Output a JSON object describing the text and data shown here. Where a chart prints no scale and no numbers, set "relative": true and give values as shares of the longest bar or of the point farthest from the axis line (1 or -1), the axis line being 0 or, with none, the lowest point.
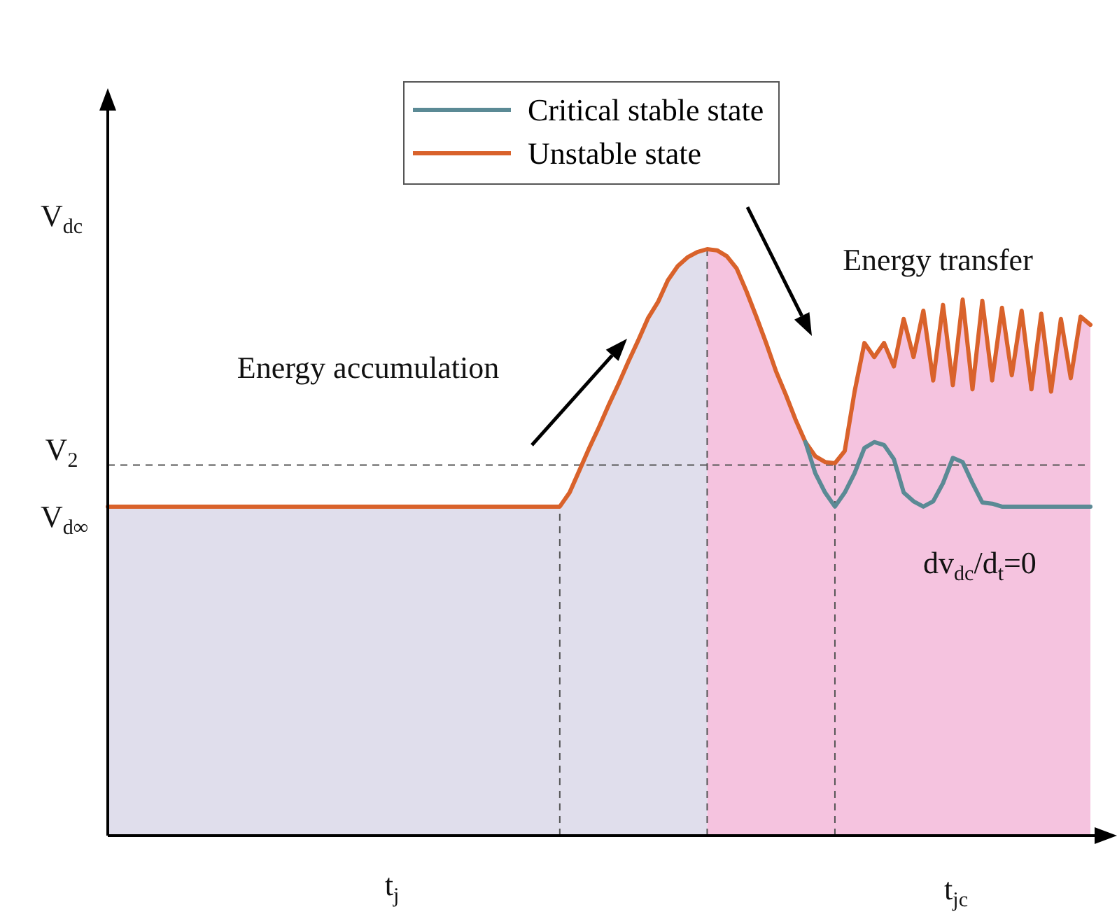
{
  "chart_data": {
    "type": "line",
    "relative": true,
    "ylabel": "V$_{dc}$",
    "legend": "top",
    "categories": [
      null,
      null,
      null,
      null,
      null,
      null,
      null,
      null,
      null,
      null,
      null,
      null,
      null,
      null,
      null,
      null,
      null,
      null,
      null,
      null,
      null,
      null,
      null,
      null,
      null,
      null,
      null,
      null,
      null,
      null,
      null,
      null,
      null,
      null,
      null,
      null,
      null,
      null,
      null,
      null,
      null,
      null,
      null,
      null,
      null,
      null,
      null,
      null,
      null,
      null,
      null,
      null,
      null,
      null,
      null,
      null,
      null,
      null,
      null,
      null,
      null,
      null,
      null,
      null,
      null,
      null,
      null,
      null,
      null,
      null,
      null,
      null,
      null,
      null,
      null,
      null,
      null,
      null,
      null,
      null,
      null,
      null,
      null,
      null,
      null,
      null,
      null,
      null,
      null,
      null,
      null,
      null,
      null,
      null,
      null,
      null,
      null,
      null,
      null,
      null,
      null
    ],
    "series": [
      {
        "name": "Critical stable state",
        "color": "#5b8a95",
        "values": [
          null,
          null,
          null,
          null,
          null,
          null,
          null,
          null,
          null,
          null,
          null,
          null,
          null,
          null,
          null,
          null,
          null,
          null,
          null,
          null,
          null,
          null,
          null,
          null,
          null,
          null,
          null,
          null,
          null,
          null,
          null,
          null,
          null,
          null,
          null,
          null,
          null,
          null,
          null,
          null,
          null,
          null,
          null,
          null,
          null,
          null,
          null,
          null,
          null,
          null,
          null,
          null,
          null,
          null,
          null,
          null,
          null,
          null,
          null,
          null,
          null,
          null,
          null,
          null,
          null,
          null,
          null,
          null,
          null,
          null,
          null,
          0.671,
          0.618,
          0.585,
          0.561,
          0.585,
          0.618,
          0.661,
          0.671,
          0.666,
          0.642,
          0.585,
          0.57,
          0.561,
          0.57,
          0.601,
          0.644,
          0.637,
          0.601,
          0.568,
          0.566,
          0.561,
          0.561,
          0.561,
          0.561,
          0.561,
          0.561,
          0.561,
          0.561,
          0.561,
          0.561
        ]
      },
      {
        "name": "Unstable state",
        "type": "area",
        "color": "#d9622b",
        "values": [
          0.561,
          0.561,
          0.561,
          0.561,
          0.561,
          0.561,
          0.561,
          0.561,
          0.561,
          0.561,
          0.561,
          0.561,
          0.561,
          0.561,
          0.561,
          0.561,
          0.561,
          0.561,
          0.561,
          0.561,
          0.561,
          0.561,
          0.561,
          0.561,
          0.561,
          0.561,
          0.561,
          0.561,
          0.561,
          0.561,
          0.561,
          0.561,
          0.561,
          0.561,
          0.561,
          0.561,
          0.561,
          0.561,
          0.561,
          0.561,
          0.561,
          0.561,
          0.561,
          0.561,
          0.561,
          0.561,
          0.561,
          0.585,
          0.623,
          0.661,
          0.697,
          0.735,
          0.771,
          0.809,
          0.845,
          0.883,
          0.91,
          0.947,
          0.971,
          0.986,
          0.995,
          1,
          0.998,
          0.988,
          0.967,
          0.928,
          0.885,
          0.84,
          0.792,
          0.752,
          0.709,
          0.671,
          0.647,
          0.637,
          0.635,
          0.656,
          0.757,
          0.84,
          0.816,
          0.84,
          0.8,
          0.881,
          0.816,
          0.895,
          0.776,
          0.905,
          0.768,
          0.914,
          0.761,
          0.912,
          0.776,
          0.9,
          0.785,
          0.895,
          0.761,
          0.89,
          0.757,
          0.881,
          0.78,
          0.885,
          0.871
        ]
      }
    ],
    "ref_lines": [
      {
        "axis": "y",
        "value": 0.632,
        "label": "V$_{2}$",
        "line_style": "dashed"
      }
    ],
    "annotations": [
      "Energy accumulation",
      "Energy transfer",
      "dv$_{dc}$/d$_{t}$=0",
      "t$_{j}$",
      "t$_{jc}$",
      "V$_{d∞}$"
    ],
    "line_style": "solid",
    "marker": "none"
  }
}
